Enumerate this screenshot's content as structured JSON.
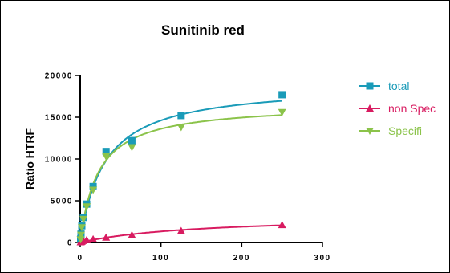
{
  "chart_data": {
    "type": "scatter",
    "title": "Sunitinib red",
    "xlabel": "",
    "ylabel": "Ratio HTRF",
    "xlim": [
      0,
      300
    ],
    "ylim": [
      0,
      20000
    ],
    "x_ticks": [
      "0",
      "100",
      "200",
      "300"
    ],
    "y_ticks": [
      "0",
      "5000",
      "10000",
      "15000",
      "20000"
    ],
    "legend_position": "right",
    "series": [
      {
        "name": "total",
        "color": "#1a9bb8",
        "marker": "square",
        "x": [
          0.5,
          1,
          2,
          4,
          8,
          16,
          32,
          64,
          125,
          250
        ],
        "y": [
          400,
          1000,
          2000,
          3000,
          4600,
          6700,
          10900,
          12200,
          15200,
          17700
        ],
        "fit": {
          "model": "one-site-binding",
          "bmax": 19000,
          "kd": 30
        }
      },
      {
        "name": "non Spec",
        "color": "#d81b60",
        "marker": "triangle-up",
        "x": [
          0.5,
          1,
          2,
          4,
          8,
          16,
          32,
          64,
          125,
          250
        ],
        "y": [
          50,
          80,
          120,
          200,
          300,
          400,
          600,
          900,
          1400,
          2100
        ],
        "fit": {
          "model": "one-site-binding",
          "bmax": 3300,
          "kd": 150
        }
      },
      {
        "name": "Specifi",
        "color": "#8bc34a",
        "marker": "triangle-down",
        "x": [
          0.5,
          1,
          2,
          4,
          8,
          16,
          32,
          64,
          125,
          250
        ],
        "y": [
          350,
          900,
          1800,
          2800,
          4300,
          6300,
          10300,
          11400,
          13800,
          15600
        ],
        "fit": {
          "model": "one-site-binding",
          "bmax": 16600,
          "kd": 22
        }
      }
    ]
  }
}
